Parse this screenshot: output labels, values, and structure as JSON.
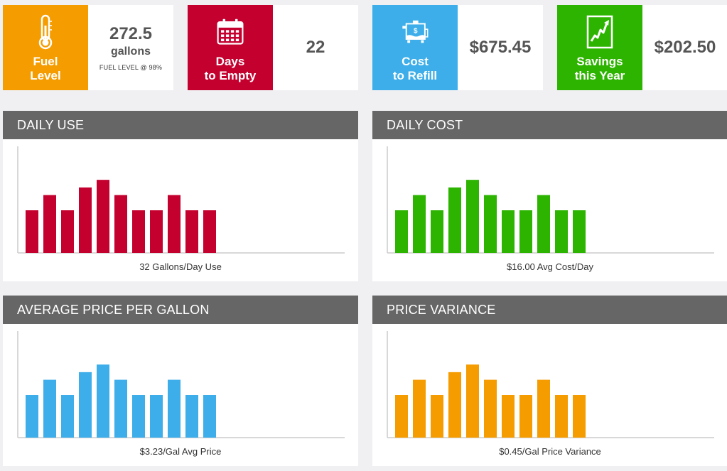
{
  "tiles": [
    {
      "icon": "thermometer-icon",
      "color": "#f59c00",
      "label_lines": [
        "Fuel",
        "Level"
      ],
      "value": "272.5",
      "unit": "gallons",
      "note": "FUEL LEVEL @ 98%"
    },
    {
      "icon": "calendar-icon",
      "color": "#c4002f",
      "label_lines": [
        "Days",
        "to Empty"
      ],
      "value": "22"
    },
    {
      "icon": "fuel-tank-icon",
      "color": "#3daee9",
      "label_lines": [
        "Cost",
        "to Refill"
      ],
      "value": "$675.45"
    },
    {
      "icon": "trend-chart-icon",
      "color": "#2db400",
      "label_lines": [
        "Savings",
        "this Year"
      ],
      "value": "$202.50"
    }
  ],
  "panels": [
    {
      "title": "DAILY USE",
      "caption": "32 Gallons/Day Use",
      "color": "#c4002f"
    },
    {
      "title": "DAILY COST",
      "caption": "$16.00 Avg Cost/Day",
      "color": "#2db400"
    },
    {
      "title": "AVERAGE PRICE PER GALLON",
      "caption": "$3.23/Gal Avg Price",
      "color": "#3daee9"
    },
    {
      "title": "PRICE VARIANCE",
      "caption": "$0.45/Gal Price Variance",
      "color": "#f59c00"
    }
  ],
  "chart_data": [
    {
      "type": "bar",
      "title": "DAILY USE",
      "categories": [
        "",
        "",
        "",
        "",
        "",
        "",
        "",
        "",
        "",
        "",
        ""
      ],
      "values": [
        2.8,
        3.8,
        2.8,
        4.3,
        4.8,
        3.8,
        2.8,
        2.8,
        3.8,
        2.8,
        2.8
      ],
      "ylim": [
        0,
        7
      ]
    },
    {
      "type": "bar",
      "title": "DAILY COST",
      "categories": [
        "",
        "",
        "",
        "",
        "",
        "",
        "",
        "",
        "",
        "",
        ""
      ],
      "values": [
        2.8,
        3.8,
        2.8,
        4.3,
        4.8,
        3.8,
        2.8,
        2.8,
        3.8,
        2.8,
        2.8
      ],
      "ylim": [
        0,
        7
      ]
    },
    {
      "type": "bar",
      "title": "AVERAGE PRICE PER GALLON",
      "categories": [
        "",
        "",
        "",
        "",
        "",
        "",
        "",
        "",
        "",
        "",
        ""
      ],
      "values": [
        2.8,
        3.8,
        2.8,
        4.3,
        4.8,
        3.8,
        2.8,
        2.8,
        3.8,
        2.8,
        2.8
      ],
      "ylim": [
        0,
        7
      ]
    },
    {
      "type": "bar",
      "title": "PRICE VARIANCE",
      "categories": [
        "",
        "",
        "",
        "",
        "",
        "",
        "",
        "",
        "",
        "",
        ""
      ],
      "values": [
        2.8,
        3.8,
        2.8,
        4.3,
        4.8,
        3.8,
        2.8,
        2.8,
        3.8,
        2.8,
        2.8
      ],
      "ylim": [
        0,
        7
      ]
    }
  ]
}
